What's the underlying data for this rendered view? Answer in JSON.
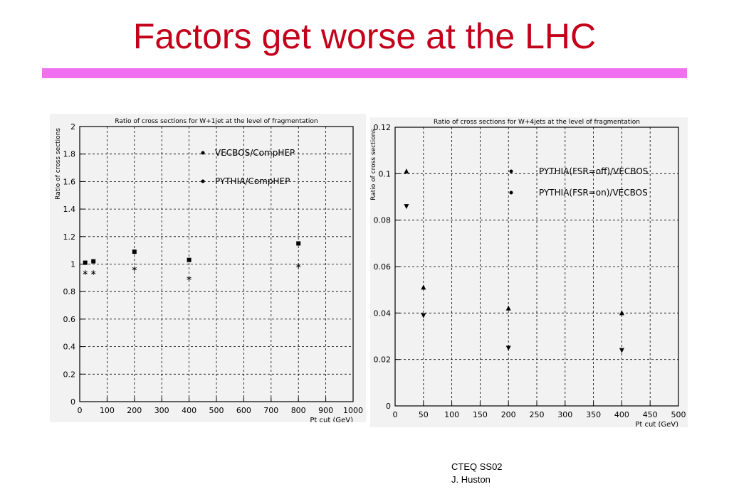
{
  "slide": {
    "title": "Factors get worse at the LHC",
    "footer_line1": "CTEQ SS02",
    "footer_line2": "J. Huston"
  },
  "colors": {
    "title": "#c4001a",
    "title_bar": "#f070f0",
    "panel": "#f2f2f2"
  },
  "chart_data": [
    {
      "type": "scatter",
      "title": "Ratio of cross sections for W+1jet at the level of fragmentation",
      "xlabel": "Pt cut (GeV)",
      "ylabel": "Ratio of cross sections",
      "xlim": [
        0,
        1000
      ],
      "ylim": [
        0,
        2
      ],
      "xticks": [
        0,
        100,
        200,
        300,
        400,
        500,
        600,
        700,
        800,
        900,
        1000
      ],
      "yticks": [
        0,
        0.2,
        0.4,
        0.6,
        0.8,
        1,
        1.2,
        1.4,
        1.6,
        1.8,
        2
      ],
      "xtick_labels": [
        "0",
        "100",
        "200",
        "300",
        "400",
        "500",
        "600",
        "700",
        "800",
        "900",
        "1000"
      ],
      "ytick_labels": [
        "0",
        "0.2",
        "0.4",
        "0.6",
        "0.8",
        "1",
        "1.2",
        "1.4",
        "1.6",
        "1.8",
        "2"
      ],
      "grid": true,
      "legend_position": "top-right",
      "series": [
        {
          "name": "VECBOS/CompHEP",
          "marker": "square",
          "x": [
            20,
            50,
            200,
            400,
            800
          ],
          "y": [
            1.01,
            1.02,
            1.09,
            1.03,
            1.15
          ]
        },
        {
          "name": "PYTHIA/CompHEP",
          "marker": "star",
          "x": [
            20,
            50,
            200,
            400,
            800
          ],
          "y": [
            0.94,
            0.94,
            0.97,
            0.9,
            0.99
          ]
        }
      ]
    },
    {
      "type": "scatter",
      "title": "Ratio of cross sections for W+4jets at the level of fragmentation",
      "xlabel": "Pt cut (GeV)",
      "ylabel": "Ratio of cross sections",
      "xlim": [
        0,
        500
      ],
      "ylim": [
        0,
        0.12
      ],
      "xticks": [
        0,
        50,
        100,
        150,
        200,
        250,
        300,
        350,
        400,
        450,
        500
      ],
      "yticks": [
        0,
        0.02,
        0.04,
        0.06,
        0.08,
        0.1,
        0.12
      ],
      "xtick_labels": [
        "0",
        "50",
        "100",
        "150",
        "200",
        "250",
        "300",
        "350",
        "400",
        "450",
        "500"
      ],
      "ytick_labels": [
        "0",
        "0.02",
        "0.04",
        "0.06",
        "0.08",
        "0.1",
        "0.12"
      ],
      "grid": true,
      "legend_position": "top-right",
      "series": [
        {
          "name": "PYTHIA(FSR=off)/VECBOS",
          "marker": "triangle-down",
          "x": [
            20,
            50,
            200,
            400
          ],
          "y": [
            0.086,
            0.039,
            0.025,
            0.024
          ]
        },
        {
          "name": "PYTHIA(FSR=on)/VECBOS",
          "marker": "triangle-up",
          "x": [
            20,
            50,
            200,
            400
          ],
          "y": [
            0.101,
            0.051,
            0.042,
            0.04
          ]
        }
      ]
    }
  ]
}
